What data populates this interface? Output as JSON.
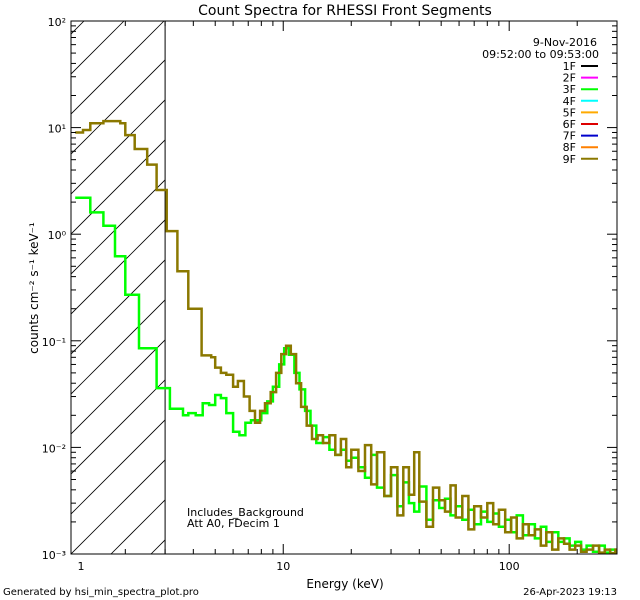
{
  "chart_data": {
    "type": "line",
    "title": "Count Spectra for RHESSI Front Segments",
    "xlabel": "Energy (keV)",
    "ylabel": "counts cm⁻² s⁻¹ keV⁻¹",
    "x_scale": "log",
    "y_scale": "log",
    "xlim": [
      1.15,
      300
    ],
    "ylim": [
      0.001,
      100
    ],
    "x_ticks": [
      {
        "value": 1,
        "label": "1"
      },
      {
        "value": 10,
        "label": "10"
      },
      {
        "value": 100,
        "label": "100"
      }
    ],
    "y_ticks": [
      {
        "value": 100,
        "label": "10²"
      },
      {
        "value": 10,
        "label": "10¹"
      },
      {
        "value": 1,
        "label": "10⁰"
      },
      {
        "value": 0.1,
        "label": "10⁻¹"
      },
      {
        "value": 0.01,
        "label": "10⁻²"
      },
      {
        "value": 0.001,
        "label": "10⁻³"
      }
    ],
    "date": "9-Nov-2016",
    "time_range": "09:52:00 to 09:53:00",
    "hatched_region": {
      "x_max": 3.0
    },
    "notes": [
      "Includes_Background",
      "Att A0, FDecim 1"
    ],
    "legend": [
      {
        "label": "1F",
        "color": "#000000"
      },
      {
        "label": "2F",
        "color": "#ff00ff"
      },
      {
        "label": "3F",
        "color": "#00ff00"
      },
      {
        "label": "4F",
        "color": "#00ffff"
      },
      {
        "label": "5F",
        "color": "#ffaa00"
      },
      {
        "label": "6F",
        "color": "#dd0000"
      },
      {
        "label": "7F",
        "color": "#0000cc"
      },
      {
        "label": "8F",
        "color": "#ff8000"
      },
      {
        "label": "9F",
        "color": "#8b7800"
      }
    ],
    "series": [
      {
        "name": "3F",
        "color": "#00ff00",
        "points": [
          [
            1.2,
            2.2
          ],
          [
            1.3,
            2.2
          ],
          [
            1.4,
            1.6
          ],
          [
            1.5,
            1.6
          ],
          [
            1.6,
            1.2
          ],
          [
            1.7,
            1.2
          ],
          [
            1.8,
            0.62
          ],
          [
            1.9,
            0.62
          ],
          [
            2.0,
            0.27
          ],
          [
            2.2,
            0.27
          ],
          [
            2.3,
            0.085
          ],
          [
            2.6,
            0.085
          ],
          [
            2.75,
            0.036
          ],
          [
            3.0,
            0.036
          ],
          [
            3.15,
            0.023
          ],
          [
            3.4,
            0.023
          ],
          [
            3.6,
            0.02
          ],
          [
            3.8,
            0.021
          ],
          [
            4.1,
            0.02
          ],
          [
            4.4,
            0.026
          ],
          [
            4.7,
            0.025
          ],
          [
            5.0,
            0.031
          ],
          [
            5.3,
            0.029
          ],
          [
            5.6,
            0.021
          ],
          [
            6.0,
            0.014
          ],
          [
            6.4,
            0.013
          ],
          [
            6.8,
            0.017
          ],
          [
            7.2,
            0.018
          ],
          [
            7.6,
            0.018
          ],
          [
            8.0,
            0.021
          ],
          [
            8.5,
            0.027
          ],
          [
            9.0,
            0.037
          ],
          [
            9.6,
            0.06
          ],
          [
            10.1,
            0.085
          ],
          [
            10.6,
            0.074
          ],
          [
            11.2,
            0.05
          ],
          [
            11.8,
            0.035
          ],
          [
            12.5,
            0.022
          ],
          [
            13.2,
            0.016
          ],
          [
            14,
            0.011
          ],
          [
            15,
            0.0125
          ],
          [
            16,
            0.0095
          ],
          [
            17,
            0.0085
          ],
          [
            18,
            0.0095
          ],
          [
            19,
            0.0075
          ],
          [
            20,
            0.008
          ],
          [
            21.5,
            0.0065
          ],
          [
            23,
            0.0052
          ],
          [
            24.5,
            0.0085
          ],
          [
            26,
            0.0042
          ],
          [
            28,
            0.0035
          ],
          [
            30,
            0.0055
          ],
          [
            32,
            0.0028
          ],
          [
            34,
            0.0047
          ],
          [
            36,
            0.003
          ],
          [
            38,
            0.0025
          ],
          [
            40,
            0.0043
          ],
          [
            43,
            0.0021
          ],
          [
            46,
            0.0032
          ],
          [
            49,
            0.0027
          ],
          [
            52,
            0.0033
          ],
          [
            55,
            0.0023
          ],
          [
            58,
            0.0028
          ],
          [
            62,
            0.0021
          ],
          [
            66,
            0.0026
          ],
          [
            70,
            0.0019
          ],
          [
            75,
            0.0025
          ],
          [
            80,
            0.002
          ],
          [
            85,
            0.0024
          ],
          [
            90,
            0.0018
          ],
          [
            96,
            0.0021
          ],
          [
            102,
            0.0016
          ],
          [
            108,
            0.0023
          ],
          [
            115,
            0.0015
          ],
          [
            122,
            0.0019
          ],
          [
            130,
            0.0014
          ],
          [
            138,
            0.0018
          ],
          [
            146,
            0.0013
          ],
          [
            155,
            0.0016
          ],
          [
            165,
            0.0013
          ],
          [
            175,
            0.0014
          ],
          [
            185,
            0.0012
          ],
          [
            196,
            0.0013
          ],
          [
            208,
            0.0011
          ],
          [
            220,
            0.0012
          ],
          [
            235,
            0.00105
          ],
          [
            250,
            0.0012
          ],
          [
            265,
            0.00103
          ],
          [
            280,
            0.0011
          ],
          [
            295,
            0.00105
          ]
        ]
      },
      {
        "name": "9F",
        "color": "#8b7800",
        "points": [
          [
            1.2,
            9.0
          ],
          [
            1.3,
            9.5
          ],
          [
            1.4,
            11.0
          ],
          [
            1.5,
            11.0
          ],
          [
            1.6,
            11.5
          ],
          [
            1.8,
            11.5
          ],
          [
            1.9,
            11.0
          ],
          [
            2.0,
            8.5
          ],
          [
            2.1,
            8.5
          ],
          [
            2.2,
            6.3
          ],
          [
            2.4,
            6.3
          ],
          [
            2.5,
            4.5
          ],
          [
            2.6,
            4.5
          ],
          [
            2.75,
            2.6
          ],
          [
            3.0,
            2.6
          ],
          [
            3.05,
            1.07
          ],
          [
            3.3,
            1.07
          ],
          [
            3.4,
            0.45
          ],
          [
            3.7,
            0.45
          ],
          [
            3.8,
            0.2
          ],
          [
            4.2,
            0.2
          ],
          [
            4.35,
            0.073
          ],
          [
            4.8,
            0.07
          ],
          [
            5.0,
            0.056
          ],
          [
            5.3,
            0.05
          ],
          [
            5.6,
            0.048
          ],
          [
            6.0,
            0.037
          ],
          [
            6.3,
            0.042
          ],
          [
            6.7,
            0.03
          ],
          [
            7.1,
            0.022
          ],
          [
            7.5,
            0.017
          ],
          [
            7.9,
            0.022
          ],
          [
            8.3,
            0.026
          ],
          [
            8.8,
            0.033
          ],
          [
            9.3,
            0.05
          ],
          [
            9.8,
            0.075
          ],
          [
            10.3,
            0.09
          ],
          [
            10.8,
            0.075
          ],
          [
            11.4,
            0.04
          ],
          [
            12.0,
            0.024
          ],
          [
            12.7,
            0.016
          ],
          [
            13.4,
            0.012
          ],
          [
            14.2,
            0.013
          ],
          [
            15,
            0.011
          ],
          [
            16,
            0.013
          ],
          [
            17,
            0.0085
          ],
          [
            18,
            0.012
          ],
          [
            19,
            0.0065
          ],
          [
            20,
            0.0095
          ],
          [
            21.5,
            0.006
          ],
          [
            23,
            0.0105
          ],
          [
            24.5,
            0.0045
          ],
          [
            26,
            0.009
          ],
          [
            28,
            0.0035
          ],
          [
            30,
            0.0065
          ],
          [
            32,
            0.0023
          ],
          [
            34,
            0.0065
          ],
          [
            36,
            0.0036
          ],
          [
            38,
            0.009
          ],
          [
            40,
            0.0031
          ],
          [
            43,
            0.0018
          ],
          [
            46,
            0.0042
          ],
          [
            49,
            0.0032
          ],
          [
            52,
            0.0025
          ],
          [
            55,
            0.0044
          ],
          [
            58,
            0.0022
          ],
          [
            62,
            0.0035
          ],
          [
            66,
            0.0017
          ],
          [
            70,
            0.0028
          ],
          [
            75,
            0.0022
          ],
          [
            80,
            0.003
          ],
          [
            85,
            0.0019
          ],
          [
            90,
            0.0026
          ],
          [
            96,
            0.0016
          ],
          [
            102,
            0.0022
          ],
          [
            108,
            0.0014
          ],
          [
            115,
            0.0019
          ],
          [
            122,
            0.0015
          ],
          [
            130,
            0.0017
          ],
          [
            138,
            0.0012
          ],
          [
            146,
            0.0016
          ],
          [
            155,
            0.0011
          ],
          [
            165,
            0.0014
          ],
          [
            175,
            0.00125
          ],
          [
            185,
            0.0011
          ],
          [
            196,
            0.0012
          ],
          [
            208,
            0.00105
          ],
          [
            220,
            0.0011
          ],
          [
            235,
            0.0012
          ],
          [
            250,
            0.00103
          ],
          [
            265,
            0.0011
          ],
          [
            280,
            0.00102
          ],
          [
            295,
            0.0011
          ]
        ]
      }
    ]
  },
  "footer": {
    "generated": "Generated by hsi_min_spectra_plot.pro",
    "timestamp": "26-Apr-2023 19:13"
  }
}
